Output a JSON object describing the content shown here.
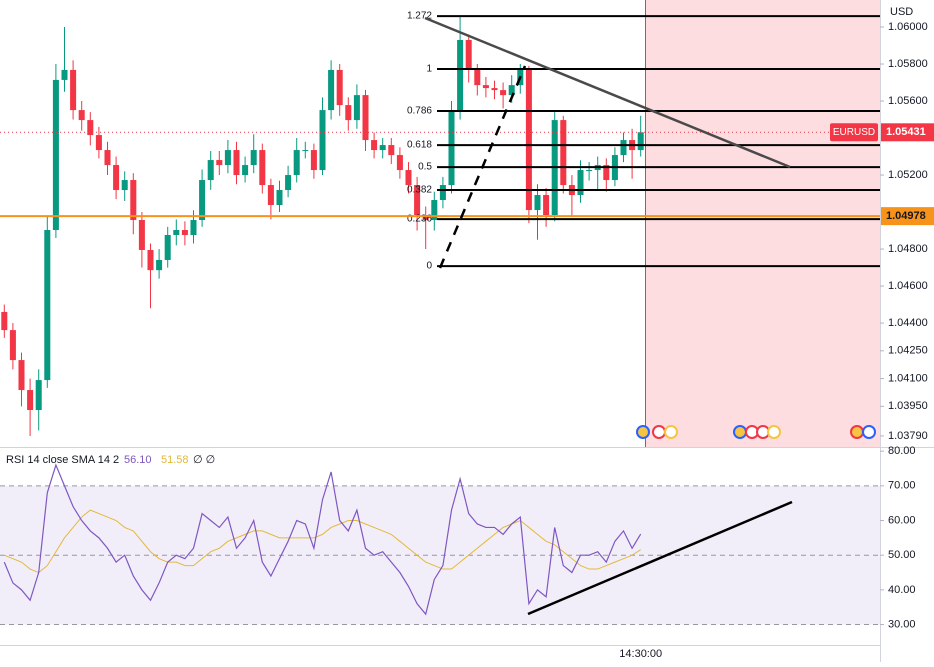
{
  "chart_data": [
    {
      "type": "candlestick",
      "symbol": "EURUSD",
      "currency": "USD",
      "up_color": "#089981",
      "down_color": "#f23645",
      "open": [
        1.0446,
        1.04362,
        1.042,
        1.04038,
        1.0393,
        1.04092,
        1.04903,
        1.05714,
        1.05768,
        1.05551,
        1.05497,
        1.05416,
        1.05335,
        1.05254,
        1.05119,
        1.05173,
        1.04957,
        1.04795,
        1.04686,
        1.04741,
        1.04876,
        1.04903,
        1.04876,
        1.04957,
        1.05173,
        1.05281,
        1.05254,
        1.05335,
        1.052,
        1.05254,
        1.05335,
        1.05146,
        1.05038,
        1.05119,
        1.052,
        1.05335,
        1.05335,
        1.05227,
        1.05551,
        1.05768,
        1.05578,
        1.05497,
        1.05632,
        1.05389,
        1.05335,
        1.05362,
        1.05308,
        1.05227,
        1.05146,
        1.04984,
        1.04957,
        1.05065,
        1.05146,
        1.05551,
        1.0593,
        1.05768,
        1.05686,
        1.0567,
        1.05659,
        1.05632,
        1.05686,
        1.05768,
        1.05011,
        1.05092,
        1.04984,
        1.05497,
        1.05146,
        1.05092,
        1.05227,
        1.05227,
        1.05254,
        1.05173,
        1.05308,
        1.05389,
        1.05335
      ],
      "high": [
        1.045,
        1.044,
        1.0424,
        1.041,
        1.0415,
        1.0498,
        1.058,
        1.06,
        1.0582,
        1.056,
        1.0554,
        1.0546,
        1.0538,
        1.053,
        1.0522,
        1.0521,
        1.05,
        1.0483,
        1.048,
        1.0492,
        1.0496,
        1.0495,
        1.0501,
        1.0523,
        1.0533,
        1.0533,
        1.0539,
        1.0538,
        1.053,
        1.0542,
        1.0537,
        1.0518,
        1.0517,
        1.0525,
        1.054,
        1.0538,
        1.0537,
        1.0562,
        1.0582,
        1.058,
        1.0562,
        1.0569,
        1.0566,
        1.0543,
        1.054,
        1.054,
        1.0535,
        1.0527,
        1.0519,
        1.0503,
        1.0511,
        1.0519,
        1.056,
        1.06059,
        1.0596,
        1.058,
        1.0573,
        1.0571,
        1.057,
        1.0574,
        1.058,
        1.0579,
        1.0515,
        1.0513,
        1.0554,
        1.0552,
        1.052,
        1.0528,
        1.0527,
        1.053,
        1.0529,
        1.0535,
        1.0543,
        1.0545,
        1.0552
      ],
      "low": [
        1.0432,
        1.0415,
        1.0395,
        1.0379,
        1.0382,
        1.0405,
        1.0486,
        1.0565,
        1.055,
        1.0544,
        1.0536,
        1.0529,
        1.052,
        1.0507,
        1.0506,
        1.0488,
        1.047,
        1.0448,
        1.0464,
        1.047,
        1.0482,
        1.0482,
        1.0483,
        1.0492,
        1.0512,
        1.052,
        1.0521,
        1.0515,
        1.0516,
        1.0521,
        1.051,
        1.0496,
        1.05,
        1.0508,
        1.0516,
        1.0529,
        1.0518,
        1.052,
        1.055,
        1.0552,
        1.0544,
        1.0545,
        1.0533,
        1.0529,
        1.0529,
        1.0526,
        1.0518,
        1.051,
        1.049,
        1.048,
        1.049,
        1.0502,
        1.051,
        1.055,
        1.057,
        1.0563,
        1.0562,
        1.0561,
        1.0556,
        1.0559,
        1.0564,
        1.0494,
        1.0485,
        1.0492,
        1.0495,
        1.051,
        1.0498,
        1.0505,
        1.0517,
        1.0512,
        1.0511,
        1.0514,
        1.0527,
        1.0518,
        1.053
      ],
      "close": [
        1.04362,
        1.042,
        1.04038,
        1.0393,
        1.04092,
        1.04903,
        1.05714,
        1.05768,
        1.05551,
        1.05497,
        1.05416,
        1.05335,
        1.05254,
        1.05119,
        1.05173,
        1.04957,
        1.04795,
        1.04686,
        1.04741,
        1.04876,
        1.04903,
        1.04876,
        1.04957,
        1.05173,
        1.05281,
        1.05254,
        1.05335,
        1.052,
        1.05254,
        1.05335,
        1.05146,
        1.05038,
        1.05119,
        1.052,
        1.05335,
        1.05335,
        1.05227,
        1.05551,
        1.05768,
        1.05578,
        1.05497,
        1.05632,
        1.05389,
        1.05335,
        1.05362,
        1.05308,
        1.05227,
        1.05146,
        1.04984,
        1.04957,
        1.05065,
        1.05146,
        1.05551,
        1.0593,
        1.05768,
        1.05686,
        1.0567,
        1.05659,
        1.05632,
        1.05686,
        1.05768,
        1.05011,
        1.05092,
        1.04984,
        1.05497,
        1.05146,
        1.05092,
        1.05227,
        1.05227,
        1.05254,
        1.05173,
        1.05308,
        1.05389,
        1.05335,
        1.05431
      ],
      "ylim": [
        1.03741,
        1.06146
      ],
      "yticks": [
        {
          "value": 1.06,
          "label": "1.06000"
        },
        {
          "value": 1.058,
          "label": "1.05800"
        },
        {
          "value": 1.056,
          "label": "1.05600"
        },
        {
          "value": 1.052,
          "label": "1.05200"
        },
        {
          "value": 1.048,
          "label": "1.04800"
        },
        {
          "value": 1.046,
          "label": "1.04600"
        },
        {
          "value": 1.044,
          "label": "1.04400"
        },
        {
          "value": 1.0425,
          "label": "1.04250"
        },
        {
          "value": 1.041,
          "label": "1.04100"
        },
        {
          "value": 1.0395,
          "label": "1.03950"
        },
        {
          "value": 1.0379,
          "label": "1.03790"
        }
      ],
      "last_price": 1.05431,
      "horizontal_line": {
        "value": 1.04978,
        "color": "#f7931a"
      },
      "fib": {
        "levels": [
          1.272,
          1,
          0.786,
          0.618,
          0.5,
          0.382,
          0.236,
          0
        ],
        "prices": [
          1.06059,
          1.05773,
          1.05546,
          1.05362,
          1.05243,
          1.05119,
          1.04962,
          1.04708
        ]
      }
    },
    {
      "type": "line",
      "title": "RSI 14 close SMA 14 2",
      "flags": "∅ ∅",
      "categories": [
        null,
        null,
        null,
        null,
        null,
        null,
        null,
        null,
        null,
        null,
        null,
        null,
        null,
        null,
        null,
        null,
        null,
        null,
        null,
        null,
        null,
        null,
        null,
        null,
        null,
        null,
        null,
        null,
        null,
        null,
        null,
        null,
        null,
        null,
        null,
        null,
        null,
        null,
        null,
        null,
        null,
        null,
        null,
        null,
        null,
        null,
        null,
        null,
        null,
        null,
        null,
        null,
        null,
        null,
        null,
        null,
        null,
        null,
        null,
        null,
        null,
        null,
        null,
        null,
        null,
        null,
        null,
        null,
        null,
        null,
        null,
        null,
        null,
        null,
        "14:30:00"
      ],
      "series": [
        {
          "color": "#7e57c2",
          "current": {
            "value": 56.1,
            "label": "56.10"
          },
          "values": [
            48,
            42,
            40,
            37,
            45,
            68,
            76,
            70,
            64,
            60,
            57,
            55,
            52,
            48,
            50,
            44,
            40,
            37,
            42,
            48,
            50,
            49,
            52,
            62,
            60,
            58,
            61,
            52,
            55,
            60,
            48,
            44,
            49,
            54,
            60,
            59,
            52,
            66,
            74,
            60,
            57,
            63,
            52,
            50,
            51,
            48,
            45,
            41,
            36,
            33,
            43,
            47,
            63,
            72,
            62,
            59,
            58,
            58,
            56,
            59,
            61,
            36,
            40,
            38,
            58,
            47,
            45,
            50,
            50,
            51,
            48,
            54,
            57,
            52,
            56.1
          ]
        },
        {
          "color": "#e2b93b",
          "current": 51.58,
          "values": [
            50,
            49,
            48,
            46,
            45,
            47,
            51,
            55,
            58,
            61,
            63,
            62,
            61,
            60,
            58,
            57,
            54,
            51,
            49,
            48,
            48,
            47,
            47,
            49,
            51,
            52,
            54,
            55,
            56,
            57,
            57,
            56,
            55,
            55,
            55,
            55,
            55,
            56,
            58,
            59,
            60,
            60,
            59,
            58,
            57,
            56,
            54,
            52,
            50,
            48,
            47,
            46,
            46,
            48,
            50,
            52,
            54,
            56,
            58,
            59,
            60,
            58,
            56,
            54,
            53,
            51,
            49,
            47,
            46,
            46,
            47,
            48,
            49,
            50,
            51.58
          ]
        }
      ],
      "ylim": [
        24.1,
        81.2
      ],
      "yticks": [
        {
          "value": 80,
          "label": "80.00"
        },
        {
          "value": 70,
          "label": "70.00"
        },
        {
          "value": 60,
          "label": "60.00"
        },
        {
          "value": 50,
          "label": "50.00"
        },
        {
          "value": 40,
          "label": "40.00"
        },
        {
          "value": 30,
          "label": "30.00"
        }
      ],
      "band": [
        30,
        70
      ],
      "reference_lines": [
        70,
        50,
        30
      ]
    }
  ]
}
